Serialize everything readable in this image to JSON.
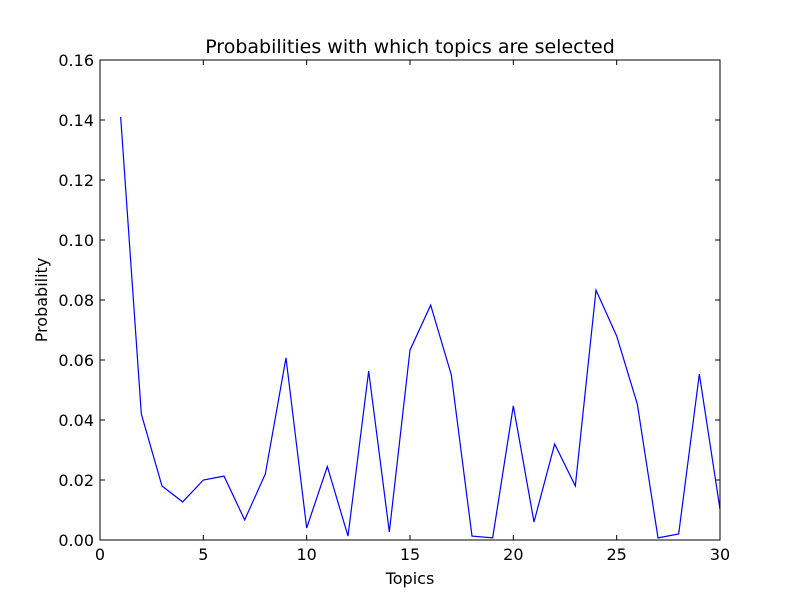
{
  "chart_data": {
    "type": "line",
    "title": "Probabilities with which topics are selected",
    "xlabel": "Topics",
    "ylabel": "Probability",
    "xlim": [
      0,
      30
    ],
    "ylim": [
      0,
      0.16
    ],
    "xticks": [
      0,
      5,
      10,
      15,
      20,
      25,
      30
    ],
    "xtick_labels": [
      "0",
      "5",
      "10",
      "15",
      "20",
      "25",
      "30"
    ],
    "yticks": [
      0,
      0.02,
      0.04,
      0.06,
      0.08,
      0.1,
      0.12,
      0.14,
      0.16
    ],
    "ytick_labels": [
      "0.00",
      "0.02",
      "0.04",
      "0.06",
      "0.08",
      "0.10",
      "0.12",
      "0.14",
      "0.16"
    ],
    "grid": false,
    "series": [
      {
        "color": "#0000ff",
        "x": [
          1,
          2,
          3,
          4,
          5,
          6,
          7,
          8,
          9,
          10,
          11,
          12,
          13,
          14,
          15,
          16,
          17,
          18,
          19,
          20,
          21,
          22,
          23,
          24,
          25,
          26,
          27,
          28,
          29,
          30
        ],
        "y": [
          0.141,
          0.042,
          0.018,
          0.0127,
          0.02,
          0.0213,
          0.0067,
          0.022,
          0.0607,
          0.004,
          0.0245,
          0.0013,
          0.0563,
          0.0027,
          0.0633,
          0.0783,
          0.055,
          0.0013,
          0.0007,
          0.0447,
          0.006,
          0.032,
          0.018,
          0.0833,
          0.068,
          0.0453,
          0.0007,
          0.002,
          0.0553,
          0.0103
        ]
      }
    ]
  }
}
